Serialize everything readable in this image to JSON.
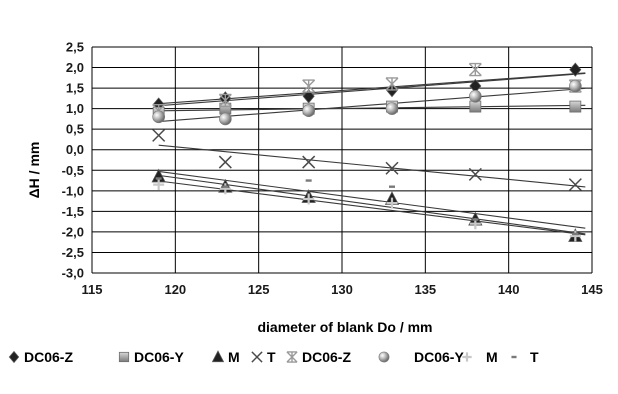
{
  "chart_data": {
    "type": "scatter",
    "xlabel": "diameter of blank Do / mm",
    "ylabel": "ΔH / mm",
    "xlim": [
      115,
      145
    ],
    "ylim": [
      -3.0,
      2.5
    ],
    "x_ticks": [
      "115",
      "120",
      "125",
      "130",
      "135",
      "140",
      "145"
    ],
    "y_ticks": [
      "2,5",
      "2,0",
      "1,5",
      "1,0",
      "0,5",
      "0,0",
      "-0,5",
      "-1,0",
      "-1,5",
      "-2,0",
      "-2,5",
      "-3,0"
    ],
    "y_tick_values": [
      2.5,
      2.0,
      1.5,
      1.0,
      0.5,
      0.0,
      -0.5,
      -1.0,
      -1.5,
      -2.0,
      -2.5,
      -3.0
    ],
    "grid": "horizontal",
    "trendlines": "linear",
    "legend_position": "bottom",
    "x": [
      119,
      123,
      128,
      133,
      138,
      144
    ],
    "series": [
      {
        "name": "DC06-Z",
        "marker": "diamond",
        "values": [
          1.1,
          1.25,
          1.3,
          1.45,
          1.55,
          1.95
        ]
      },
      {
        "name": "DC06-Y",
        "marker": "square",
        "values": [
          0.9,
          1.0,
          1.0,
          1.05,
          1.05,
          1.05
        ]
      },
      {
        "name": "M",
        "marker": "triangle",
        "values": [
          -0.65,
          -0.9,
          -1.15,
          -1.2,
          -1.7,
          -2.1
        ]
      },
      {
        "name": "T",
        "marker": "x",
        "values": [
          0.35,
          -0.3,
          -0.3,
          -0.45,
          -0.6,
          -0.85
        ]
      },
      {
        "name": "DC06-Z",
        "marker": "asterisk",
        "values": [
          0.95,
          1.2,
          1.55,
          1.6,
          1.95,
          1.55
        ]
      },
      {
        "name": "DC06-Y",
        "marker": "circle",
        "values": [
          0.8,
          0.75,
          0.95,
          1.0,
          1.3,
          1.55
        ]
      },
      {
        "name": "M",
        "marker": "plus",
        "values": [
          -0.85,
          -0.95,
          -1.2,
          -1.3,
          -1.8,
          -2.1
        ]
      },
      {
        "name": "T",
        "marker": "dash",
        "values": [
          -0.7,
          -0.9,
          -0.75,
          -0.9,
          -1.7,
          -2.05
        ]
      }
    ]
  },
  "colors": {
    "background": "#ffffff",
    "grid": "#000000",
    "trendline": "#3a3a3a",
    "marker_dark": "#222222",
    "marker_gray": "#9a9a9a",
    "marker_light": "#c8c8c8"
  }
}
